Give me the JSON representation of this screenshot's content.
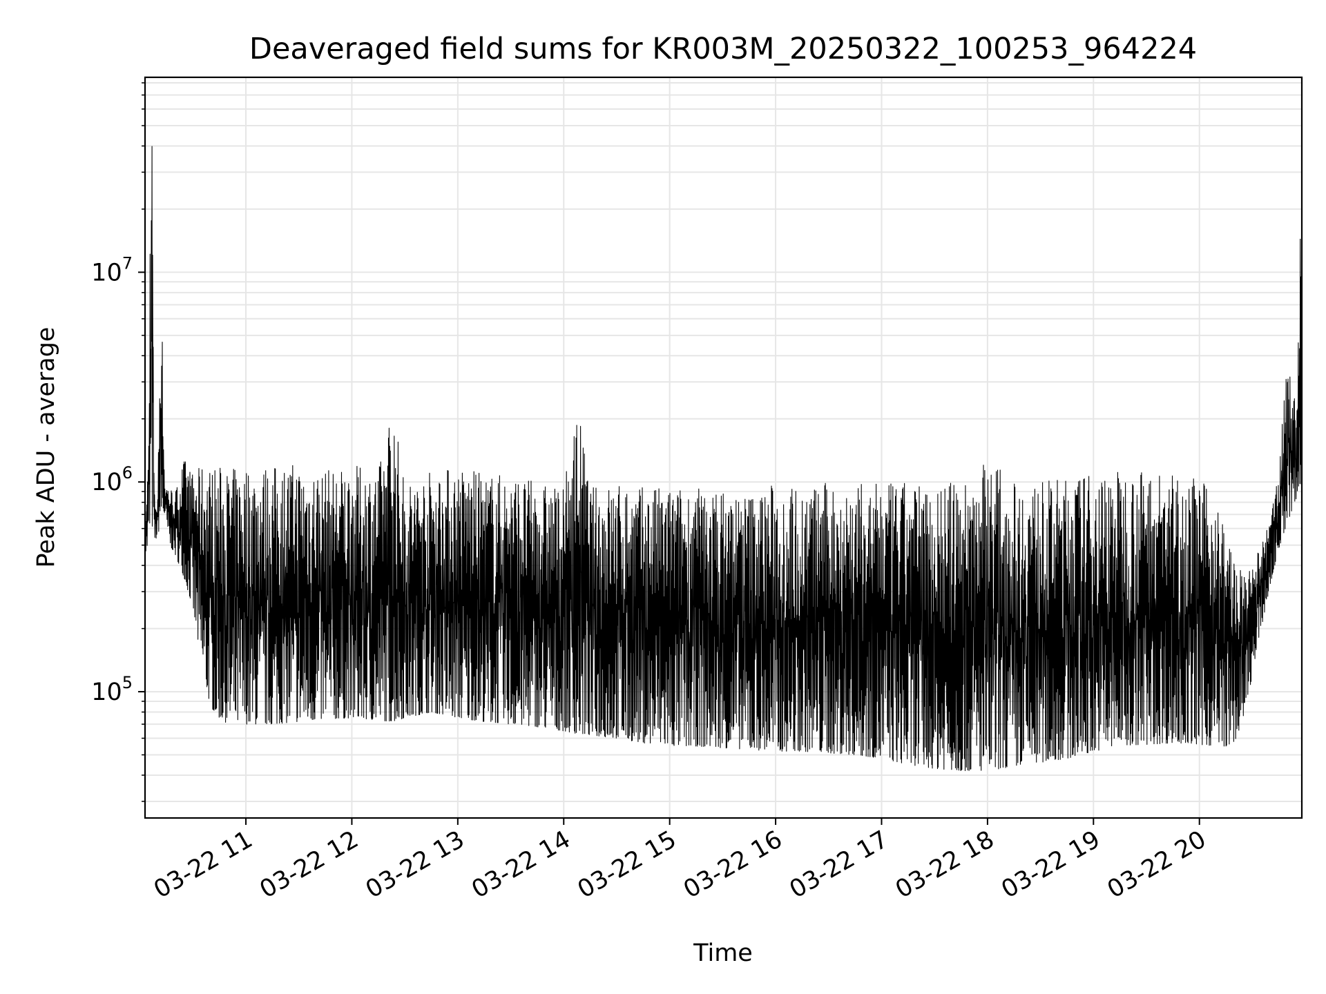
{
  "chart_data": {
    "type": "line",
    "title": "Deaveraged field sums for KR003M_20250322_100253_964224",
    "xlabel": "Time",
    "ylabel": "Peak ADU - average",
    "xlim": [
      "2025-03-22T10:02:53",
      "2025-03-22T20:58:00"
    ],
    "ylim": [
      25000,
      85000000
    ],
    "y_scale": "log",
    "grid": true,
    "line_color": "#000000",
    "grid_color": "#e6e6e6",
    "x_ticks": [
      {
        "label": "03-22 11",
        "value": "2025-03-22T11:00:00"
      },
      {
        "label": "03-22 12",
        "value": "2025-03-22T12:00:00"
      },
      {
        "label": "03-22 13",
        "value": "2025-03-22T13:00:00"
      },
      {
        "label": "03-22 14",
        "value": "2025-03-22T14:00:00"
      },
      {
        "label": "03-22 15",
        "value": "2025-03-22T15:00:00"
      },
      {
        "label": "03-22 16",
        "value": "2025-03-22T16:00:00"
      },
      {
        "label": "03-22 17",
        "value": "2025-03-22T17:00:00"
      },
      {
        "label": "03-22 18",
        "value": "2025-03-22T18:00:00"
      },
      {
        "label": "03-22 19",
        "value": "2025-03-22T19:00:00"
      },
      {
        "label": "03-22 20",
        "value": "2025-03-22T20:00:00"
      }
    ],
    "y_ticks": [
      {
        "base": "10",
        "exp": "5",
        "value": 100000
      },
      {
        "base": "10",
        "exp": "6",
        "value": 1000000
      },
      {
        "base": "10",
        "exp": "7",
        "value": 10000000
      }
    ],
    "series": [
      {
        "x": [
          "2025-03-22T10:03",
          "2025-03-22T10:04",
          "2025-03-22T10:05",
          "2025-03-22T10:06",
          "2025-03-22T10:07",
          "2025-03-22T10:08",
          "2025-03-22T10:10",
          "2025-03-22T10:12",
          "2025-03-22T10:14",
          "2025-03-22T10:17",
          "2025-03-22T10:20",
          "2025-03-22T10:25",
          "2025-03-22T10:30",
          "2025-03-22T10:35",
          "2025-03-22T10:40",
          "2025-03-22T10:45",
          "2025-03-22T10:50",
          "2025-03-22T11:00",
          "2025-03-22T11:15",
          "2025-03-22T11:30",
          "2025-03-22T11:45",
          "2025-03-22T12:00",
          "2025-03-22T12:15",
          "2025-03-22T12:23",
          "2025-03-22T12:30",
          "2025-03-22T12:45",
          "2025-03-22T13:00",
          "2025-03-22T13:15",
          "2025-03-22T13:30",
          "2025-03-22T13:45",
          "2025-03-22T14:00",
          "2025-03-22T14:08",
          "2025-03-22T14:15",
          "2025-03-22T14:30",
          "2025-03-22T14:45",
          "2025-03-22T15:00",
          "2025-03-22T15:15",
          "2025-03-22T15:30",
          "2025-03-22T15:45",
          "2025-03-22T16:00",
          "2025-03-22T16:15",
          "2025-03-22T16:30",
          "2025-03-22T16:45",
          "2025-03-22T17:00",
          "2025-03-22T17:15",
          "2025-03-22T17:30",
          "2025-03-22T17:45",
          "2025-03-22T18:00",
          "2025-03-22T18:15",
          "2025-03-22T18:30",
          "2025-03-22T18:45",
          "2025-03-22T19:00",
          "2025-03-22T19:15",
          "2025-03-22T19:30",
          "2025-03-22T19:45",
          "2025-03-22T20:00",
          "2025-03-22T20:10",
          "2025-03-22T20:15",
          "2025-03-22T20:20",
          "2025-03-22T20:25",
          "2025-03-22T20:30",
          "2025-03-22T20:35",
          "2025-03-22T20:40",
          "2025-03-22T20:45",
          "2025-03-22T20:50",
          "2025-03-22T20:55",
          "2025-03-22T20:58"
        ],
        "y_low": [
          450000,
          480000,
          500000,
          550000,
          600000,
          520000,
          550000,
          650000,
          700000,
          500000,
          450000,
          350000,
          250000,
          130000,
          85000,
          75000,
          70000,
          70000,
          70000,
          72000,
          74000,
          75000,
          73000,
          72000,
          75000,
          80000,
          75000,
          72000,
          70000,
          68000,
          65000,
          63000,
          62000,
          60000,
          57000,
          55000,
          55000,
          54000,
          53000,
          52000,
          52000,
          51000,
          50000,
          48000,
          45000,
          43000,
          42000,
          42000,
          44000,
          46000,
          48000,
          52000,
          55000,
          56000,
          57000,
          56000,
          55000,
          55000,
          58000,
          75000,
          120000,
          200000,
          320000,
          480000,
          650000,
          800000,
          900000
        ],
        "y_high": [
          700000,
          900000,
          1800000,
          45000000,
          60000000,
          900000,
          800000,
          10500000,
          1000000,
          950000,
          900000,
          1300000,
          1100000,
          1200000,
          1200000,
          1200000,
          1150000,
          1200000,
          1200000,
          1250000,
          1150000,
          1200000,
          1150000,
          2400000,
          1000000,
          1150000,
          1200000,
          1100000,
          1100000,
          1000000,
          950000,
          2350000,
          950000,
          1000000,
          950000,
          950000,
          950000,
          920000,
          900000,
          1000000,
          950000,
          1000000,
          980000,
          980000,
          1000000,
          990000,
          1000000,
          1350000,
          1000000,
          1000000,
          1050000,
          1100000,
          1150000,
          1150000,
          1100000,
          1050000,
          800000,
          600000,
          450000,
          350000,
          400000,
          500000,
          650000,
          1200000,
          4000000,
          2200000,
          38000000
        ]
      }
    ]
  }
}
